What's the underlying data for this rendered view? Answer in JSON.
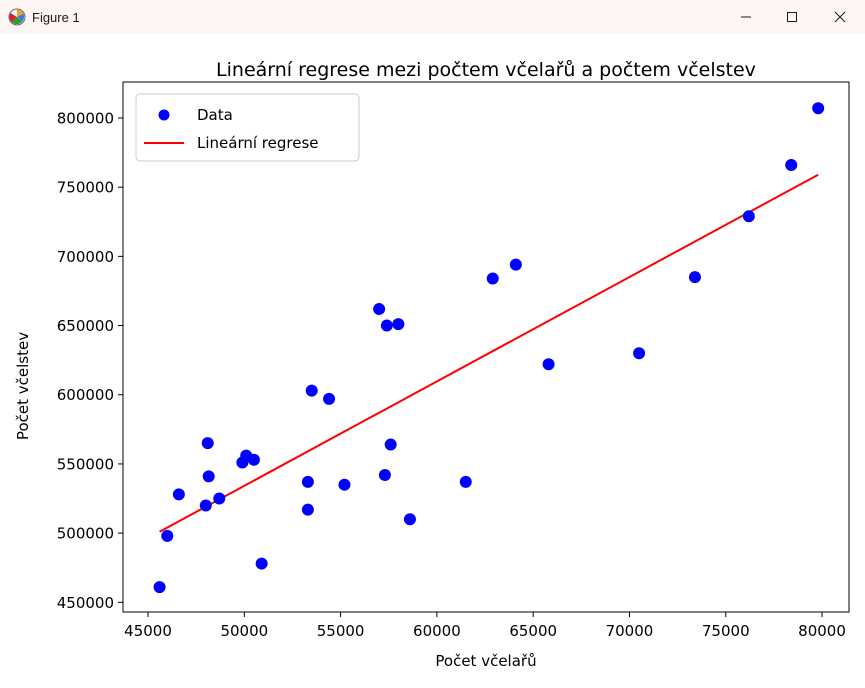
{
  "window": {
    "title": "Figure 1",
    "app_icon": "matplotlib-icon",
    "controls": [
      "minimize-icon",
      "maximize-icon",
      "close-icon"
    ]
  },
  "chart_data": {
    "type": "scatter",
    "title": "Lineární regrese mezi počtem včelařů a počtem včelstev",
    "xlabel": "Počet včelařů",
    "ylabel": "Počet včelstev",
    "xlim": [
      43700,
      81400
    ],
    "ylim": [
      443000,
      826000
    ],
    "xticks": [
      45000,
      50000,
      55000,
      60000,
      65000,
      70000,
      75000,
      80000
    ],
    "yticks": [
      450000,
      500000,
      550000,
      600000,
      650000,
      700000,
      750000,
      800000
    ],
    "grid": false,
    "legend": {
      "placement": "upper left",
      "entries": [
        "Data",
        "Lineární regrese"
      ]
    },
    "series": [
      {
        "name": "Data",
        "kind": "scatter",
        "color": "#0000ff",
        "points": [
          [
            45600,
            461000
          ],
          [
            46000,
            498000
          ],
          [
            46600,
            528000
          ],
          [
            48000,
            520000
          ],
          [
            48100,
            565000
          ],
          [
            48150,
            541000
          ],
          [
            48700,
            525000
          ],
          [
            49900,
            551000
          ],
          [
            50100,
            556000
          ],
          [
            50500,
            553000
          ],
          [
            50900,
            478000
          ],
          [
            53300,
            537000
          ],
          [
            53300,
            517000
          ],
          [
            53500,
            603000
          ],
          [
            54400,
            597000
          ],
          [
            55200,
            535000
          ],
          [
            57000,
            662000
          ],
          [
            57300,
            542000
          ],
          [
            57400,
            650000
          ],
          [
            57600,
            564000
          ],
          [
            58000,
            651000
          ],
          [
            58600,
            510000
          ],
          [
            61500,
            537000
          ],
          [
            62900,
            684000
          ],
          [
            64100,
            694000
          ],
          [
            65800,
            622000
          ],
          [
            70500,
            630000
          ],
          [
            73400,
            685000
          ],
          [
            76200,
            729000
          ],
          [
            78400,
            766000
          ],
          [
            79800,
            807000
          ]
        ]
      },
      {
        "name": "Lineární regrese",
        "kind": "line",
        "color": "#ff0000",
        "points": [
          [
            45600,
            501000
          ],
          [
            79800,
            759000
          ]
        ]
      }
    ]
  }
}
